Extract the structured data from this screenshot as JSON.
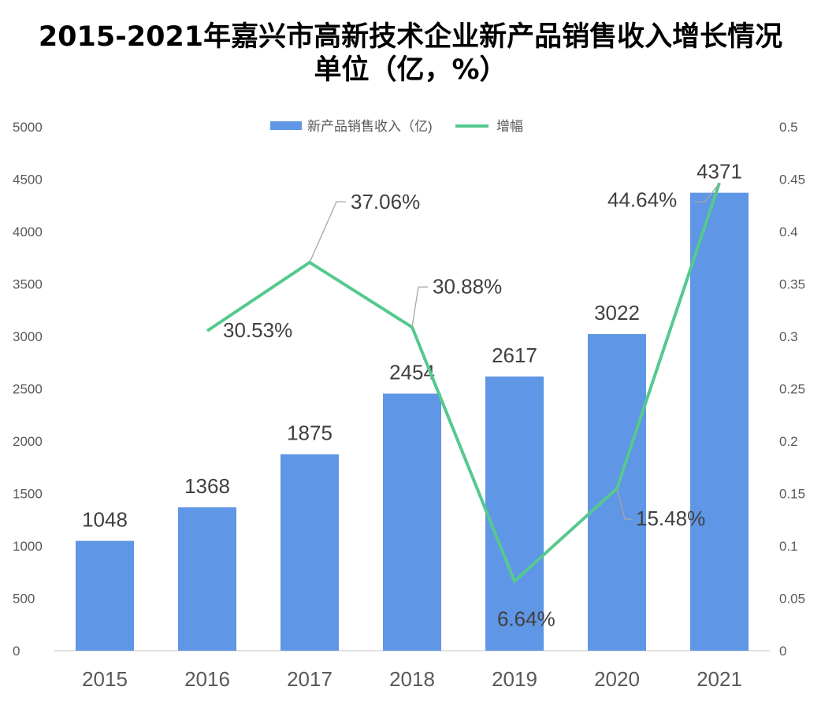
{
  "title": "2015-2021年嘉兴市高新技术企业新产品销售收入增长情况",
  "subtitle": "单位（亿，%）",
  "colors": {
    "bar": "#5f96e5",
    "line": "#55c98f",
    "leader": "#a6a6a6",
    "axis": "#d9d9d9"
  },
  "chart_data": {
    "type": "bar",
    "categories": [
      "2015",
      "2016",
      "2017",
      "2018",
      "2019",
      "2020",
      "2021"
    ],
    "series": [
      {
        "name": "新产品销售收入（亿)",
        "type": "bar",
        "axis": "left",
        "values": [
          1048,
          1368,
          1875,
          2454,
          2617,
          3022,
          4371
        ],
        "labels": [
          "1048",
          "1368",
          "1875",
          "2454",
          "2617",
          "3022",
          "4371"
        ]
      },
      {
        "name": "增幅",
        "type": "line",
        "axis": "right",
        "values": [
          null,
          0.3053,
          0.3706,
          0.3088,
          0.0664,
          0.1548,
          0.4464
        ],
        "labels": [
          "",
          "30.53%",
          "37.06%",
          "30.88%",
          "6.64%",
          "15.48%",
          "44.64%"
        ]
      }
    ],
    "y_left": {
      "lim": [
        0,
        5000
      ],
      "ticks": [
        "0",
        "500",
        "1000",
        "1500",
        "2000",
        "2500",
        "3000",
        "3500",
        "4000",
        "4500",
        "5000"
      ]
    },
    "y_right": {
      "lim": [
        0,
        0.5
      ],
      "ticks": [
        "0",
        "0.05",
        "0.1",
        "0.15",
        "0.2",
        "0.25",
        "0.3",
        "0.35",
        "0.4",
        "0.45",
        "0.5"
      ]
    },
    "legend_position": "top-center",
    "grid": false
  }
}
